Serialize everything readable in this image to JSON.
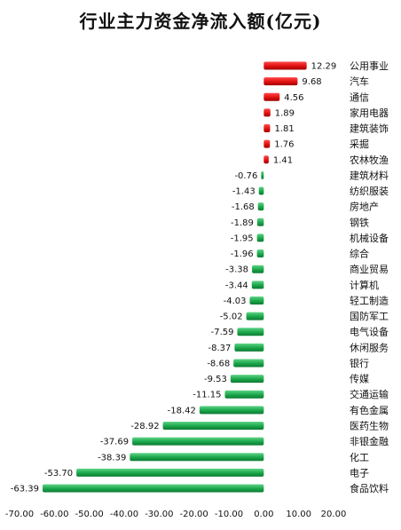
{
  "chart_data": {
    "type": "bar",
    "orientation": "horizontal",
    "title": "行业主力资金净流入额(亿元)",
    "xlabel": "",
    "ylabel": "",
    "xlim": [
      -70,
      20
    ],
    "x_ticks": [
      "-70.00",
      "-60.00",
      "-50.00",
      "-40.00",
      "-30.00",
      "-20.00",
      "-10.00",
      "0.00",
      "10.00",
      "20.00"
    ],
    "x_tick_values": [
      -70,
      -60,
      -50,
      -40,
      -30,
      -20,
      -10,
      0,
      10,
      20
    ],
    "grid": false,
    "legend": "none",
    "colors": {
      "positive": "#e01010",
      "negative": "#1aa64a"
    },
    "categories": [
      "公用事业",
      "汽车",
      "通信",
      "家用电器",
      "建筑装饰",
      "采掘",
      "农林牧渔",
      "建筑材料",
      "纺织服装",
      "房地产",
      "钢铁",
      "机械设备",
      "综合",
      "商业贸易",
      "计算机",
      "轻工制造",
      "国防军工",
      "电气设备",
      "休闲服务",
      "银行",
      "传媒",
      "交通运输",
      "有色金属",
      "医药生物",
      "非银金融",
      "化工",
      "电子",
      "食品饮料"
    ],
    "values": [
      12.29,
      9.68,
      4.56,
      1.89,
      1.81,
      1.76,
      1.41,
      -0.76,
      -1.43,
      -1.68,
      -1.89,
      -1.95,
      -1.96,
      -3.38,
      -3.44,
      -4.03,
      -5.02,
      -7.59,
      -8.37,
      -8.68,
      -9.53,
      -11.15,
      -18.42,
      -28.92,
      -37.69,
      -38.39,
      -53.7,
      -63.39
    ],
    "value_labels": [
      "12.29",
      "9.68",
      "4.56",
      "1.89",
      "1.81",
      "1.76",
      "1.41",
      "-0.76",
      "-1.43",
      "-1.68",
      "-1.89",
      "-1.95",
      "-1.96",
      "-3.38",
      "-3.44",
      "-4.03",
      "-5.02",
      "-7.59",
      "-8.37",
      "-8.68",
      "-9.53",
      "-11.15",
      "-18.42",
      "-28.92",
      "-37.69",
      "-38.39",
      "-53.70",
      "-63.39"
    ]
  }
}
